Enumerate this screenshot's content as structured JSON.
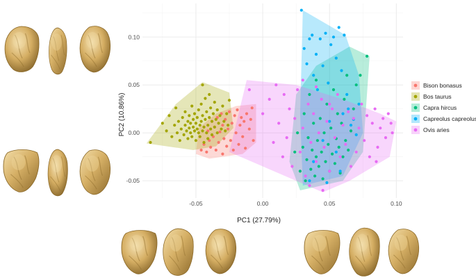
{
  "chart_data": {
    "type": "scatter",
    "title": "",
    "xlabel": "PC1 (27.79%)",
    "ylabel": "PC2 (10.86%)",
    "xlim": [
      -0.09,
      0.105
    ],
    "ylim": [
      -0.068,
      0.135
    ],
    "x_ticks": [
      {
        "value": -0.05,
        "label": "-0.05"
      },
      {
        "value": 0.0,
        "label": "0.00"
      },
      {
        "value": 0.05,
        "label": "0.05"
      },
      {
        "value": 0.1,
        "label": "0.10"
      }
    ],
    "y_ticks": [
      {
        "value": -0.05,
        "label": "-0.05"
      },
      {
        "value": 0.0,
        "label": "0.00"
      },
      {
        "value": 0.05,
        "label": "0.05"
      },
      {
        "value": 0.1,
        "label": "0.10"
      }
    ],
    "grid": true,
    "legend_position": "right",
    "convex_hulls": true,
    "series": [
      {
        "name": "Bison bonasus",
        "color": "#F8766D",
        "hull": [
          [
            -0.05,
            -0.022
          ],
          [
            -0.04,
            -0.027
          ],
          [
            -0.015,
            -0.022
          ],
          [
            -0.005,
            -0.01
          ],
          [
            -0.005,
            0.03
          ],
          [
            -0.02,
            0.028
          ],
          [
            -0.035,
            0.02
          ],
          [
            -0.048,
            0.005
          ]
        ],
        "points": [
          [
            -0.046,
            -0.018
          ],
          [
            -0.044,
            -0.012
          ],
          [
            -0.042,
            -0.02
          ],
          [
            -0.041,
            0.002
          ],
          [
            -0.04,
            -0.008
          ],
          [
            -0.039,
            -0.015
          ],
          [
            -0.038,
            0.012
          ],
          [
            -0.037,
            -0.004
          ],
          [
            -0.036,
            0.006
          ],
          [
            -0.035,
            -0.018
          ],
          [
            -0.034,
            0.016
          ],
          [
            -0.033,
            -0.01
          ],
          [
            -0.032,
            0.001
          ],
          [
            -0.031,
            0.02
          ],
          [
            -0.03,
            -0.022
          ],
          [
            -0.03,
            0.008
          ],
          [
            -0.029,
            -0.006
          ],
          [
            -0.028,
            0.014
          ],
          [
            -0.027,
            -0.014
          ],
          [
            -0.026,
            0.004
          ],
          [
            -0.025,
            0.022
          ],
          [
            -0.024,
            -0.008
          ],
          [
            -0.023,
            0.01
          ],
          [
            -0.022,
            -0.018
          ],
          [
            -0.021,
            0.018
          ],
          [
            -0.02,
            0.0
          ],
          [
            -0.019,
            0.024
          ],
          [
            -0.018,
            -0.012
          ],
          [
            -0.017,
            0.008
          ],
          [
            -0.016,
            0.016
          ],
          [
            -0.015,
            -0.004
          ],
          [
            -0.014,
            0.012
          ],
          [
            -0.013,
            -0.016
          ],
          [
            -0.012,
            0.02
          ],
          [
            -0.01,
            0.004
          ],
          [
            -0.008,
            0.026
          ],
          [
            -0.007,
            -0.008
          ],
          [
            -0.009,
            0.014
          ]
        ]
      },
      {
        "name": "Bos taurus",
        "color": "#A3A500",
        "hull": [
          [
            -0.087,
            -0.011
          ],
          [
            -0.052,
            -0.018
          ],
          [
            -0.035,
            -0.014
          ],
          [
            -0.022,
            0.005
          ],
          [
            -0.025,
            0.042
          ],
          [
            -0.045,
            0.053
          ],
          [
            -0.065,
            0.03
          ]
        ],
        "points": [
          [
            -0.084,
            -0.01
          ],
          [
            -0.075,
            0.01
          ],
          [
            -0.072,
            0.002
          ],
          [
            -0.07,
            0.018
          ],
          [
            -0.068,
            -0.004
          ],
          [
            -0.066,
            0.008
          ],
          [
            -0.065,
            0.026
          ],
          [
            -0.064,
            0.0
          ],
          [
            -0.063,
            0.012
          ],
          [
            -0.062,
            -0.008
          ],
          [
            -0.061,
            0.004
          ],
          [
            -0.06,
            0.016
          ],
          [
            -0.059,
            -0.002
          ],
          [
            -0.058,
            0.008
          ],
          [
            -0.058,
            0.022
          ],
          [
            -0.057,
            0.002
          ],
          [
            -0.056,
            0.012
          ],
          [
            -0.056,
            -0.006
          ],
          [
            -0.055,
            0.018
          ],
          [
            -0.055,
            0.005
          ],
          [
            -0.054,
            0.0
          ],
          [
            -0.054,
            0.01
          ],
          [
            -0.053,
            0.028
          ],
          [
            -0.053,
            -0.004
          ],
          [
            -0.052,
            0.006
          ],
          [
            -0.052,
            0.014
          ],
          [
            -0.051,
            0.002
          ],
          [
            -0.051,
            0.02
          ],
          [
            -0.05,
            -0.008
          ],
          [
            -0.05,
            0.01
          ],
          [
            -0.049,
            0.004
          ],
          [
            -0.049,
            0.016
          ],
          [
            -0.048,
            0.0
          ],
          [
            -0.048,
            0.024
          ],
          [
            -0.047,
            0.008
          ],
          [
            -0.047,
            -0.004
          ],
          [
            -0.046,
            0.012
          ],
          [
            -0.046,
            0.03
          ],
          [
            -0.045,
            0.002
          ],
          [
            -0.045,
            0.018
          ],
          [
            -0.044,
            0.006
          ],
          [
            -0.044,
            -0.01
          ],
          [
            -0.043,
            0.014
          ],
          [
            -0.043,
            0.036
          ],
          [
            -0.042,
            0.0
          ],
          [
            -0.042,
            0.022
          ],
          [
            -0.041,
            0.008
          ],
          [
            -0.041,
            -0.006
          ],
          [
            -0.04,
            0.016
          ],
          [
            -0.04,
            0.04
          ],
          [
            -0.039,
            0.004
          ],
          [
            -0.039,
            0.026
          ],
          [
            -0.038,
            0.012
          ],
          [
            -0.038,
            -0.002
          ],
          [
            -0.037,
            0.02
          ],
          [
            -0.036,
            0.006
          ],
          [
            -0.036,
            0.032
          ],
          [
            -0.035,
            0.014
          ],
          [
            -0.034,
            0.0
          ],
          [
            -0.034,
            0.024
          ],
          [
            -0.033,
            0.01
          ],
          [
            -0.032,
            0.018
          ],
          [
            -0.031,
            0.004
          ],
          [
            -0.03,
            0.028
          ],
          [
            -0.029,
            0.012
          ],
          [
            -0.028,
            0.002
          ],
          [
            -0.027,
            0.02
          ],
          [
            -0.026,
            0.008
          ],
          [
            -0.025,
            0.034
          ],
          [
            -0.045,
            0.05
          ]
        ]
      },
      {
        "name": "Capra hircus",
        "color": "#00BF7D",
        "hull": [
          [
            0.028,
            -0.06
          ],
          [
            0.06,
            -0.05
          ],
          [
            0.075,
            -0.02
          ],
          [
            0.08,
            0.08
          ],
          [
            0.065,
            0.09
          ],
          [
            0.04,
            0.07
          ],
          [
            0.025,
            0.04
          ],
          [
            0.02,
            -0.03
          ]
        ],
        "points": [
          [
            0.024,
            -0.02
          ],
          [
            0.026,
            0.0
          ],
          [
            0.028,
            -0.04
          ],
          [
            0.03,
            -0.015
          ],
          [
            0.031,
            0.02
          ],
          [
            0.032,
            -0.05
          ],
          [
            0.033,
            -0.028
          ],
          [
            0.034,
            -0.005
          ],
          [
            0.035,
            0.04
          ],
          [
            0.036,
            -0.038
          ],
          [
            0.037,
            -0.018
          ],
          [
            0.038,
            0.01
          ],
          [
            0.039,
            -0.045
          ],
          [
            0.04,
            -0.025
          ],
          [
            0.04,
            0.055
          ],
          [
            0.041,
            -0.008
          ],
          [
            0.042,
            -0.035
          ],
          [
            0.043,
            0.015
          ],
          [
            0.044,
            -0.02
          ],
          [
            0.045,
            -0.048
          ],
          [
            0.046,
            0.0
          ],
          [
            0.047,
            -0.03
          ],
          [
            0.048,
            0.03
          ],
          [
            0.049,
            -0.012
          ],
          [
            0.05,
            -0.04
          ],
          [
            0.051,
            0.005
          ],
          [
            0.052,
            -0.022
          ],
          [
            0.053,
            0.045
          ],
          [
            0.054,
            -0.032
          ],
          [
            0.055,
            -0.006
          ],
          [
            0.056,
            0.02
          ],
          [
            0.057,
            -0.015
          ],
          [
            0.058,
            -0.042
          ],
          [
            0.059,
            0.01
          ],
          [
            0.06,
            -0.025
          ],
          [
            0.061,
            0.035
          ],
          [
            0.062,
            -0.008
          ],
          [
            0.063,
            0.06
          ],
          [
            0.064,
            -0.018
          ],
          [
            0.066,
            0.002
          ],
          [
            0.068,
            0.025
          ],
          [
            0.07,
            0.05
          ],
          [
            0.073,
            0.06
          ],
          [
            0.078,
            0.08
          ]
        ]
      },
      {
        "name": "Capreolus capreolus",
        "color": "#00B0F6",
        "hull": [
          [
            0.03,
            -0.055
          ],
          [
            0.06,
            -0.045
          ],
          [
            0.075,
            0.0
          ],
          [
            0.072,
            0.06
          ],
          [
            0.062,
            0.102
          ],
          [
            0.03,
            0.128
          ],
          [
            0.028,
            0.02
          ]
        ],
        "points": [
          [
            0.029,
            0.128
          ],
          [
            0.031,
            0.088
          ],
          [
            0.033,
            0.072
          ],
          [
            0.035,
            0.098
          ],
          [
            0.037,
            0.102
          ],
          [
            0.038,
            0.06
          ],
          [
            0.04,
            0.082
          ],
          [
            0.041,
            0.045
          ],
          [
            0.043,
            0.098
          ],
          [
            0.045,
            0.07
          ],
          [
            0.047,
            0.104
          ],
          [
            0.049,
            0.052
          ],
          [
            0.051,
            0.092
          ],
          [
            0.053,
            0.1
          ],
          [
            0.055,
            0.078
          ],
          [
            0.057,
            0.11
          ],
          [
            0.059,
            0.065
          ],
          [
            0.061,
            0.102
          ],
          [
            0.063,
            0.04
          ],
          [
            0.06,
            0.02
          ],
          [
            0.064,
            0.025
          ],
          [
            0.066,
            0.008
          ],
          [
            0.068,
            0.014
          ],
          [
            0.07,
            -0.002
          ],
          [
            0.072,
            0.03
          ],
          [
            0.045,
            -0.008
          ],
          [
            0.05,
            0.012
          ],
          [
            0.055,
            -0.02
          ],
          [
            0.038,
            -0.03
          ],
          [
            0.048,
            -0.052
          ],
          [
            0.058,
            -0.04
          ],
          [
            0.035,
            -0.05
          ]
        ]
      },
      {
        "name": "Ovis aries",
        "color": "#E76BF3",
        "hull": [
          [
            -0.025,
            -0.02
          ],
          [
            0.025,
            -0.05
          ],
          [
            0.045,
            -0.062
          ],
          [
            0.065,
            -0.05
          ],
          [
            0.095,
            -0.025
          ],
          [
            0.1,
            0.012
          ],
          [
            0.088,
            0.02
          ],
          [
            0.06,
            0.035
          ],
          [
            0.025,
            0.05
          ],
          [
            -0.012,
            0.055
          ]
        ],
        "points": [
          [
            -0.01,
            0.045
          ],
          [
            0.0,
            0.02
          ],
          [
            0.005,
            0.035
          ],
          [
            0.008,
            -0.01
          ],
          [
            0.01,
            0.05
          ],
          [
            0.012,
            0.01
          ],
          [
            0.015,
            -0.025
          ],
          [
            0.016,
            0.04
          ],
          [
            0.018,
            -0.005
          ],
          [
            0.02,
            0.025
          ],
          [
            0.022,
            -0.035
          ],
          [
            0.024,
            0.015
          ],
          [
            0.026,
            0.045
          ],
          [
            0.028,
            -0.02
          ],
          [
            0.03,
            0.005
          ],
          [
            0.032,
            -0.045
          ],
          [
            0.034,
            0.03
          ],
          [
            0.036,
            -0.01
          ],
          [
            0.038,
            0.02
          ],
          [
            0.04,
            -0.03
          ],
          [
            0.042,
            0.0
          ],
          [
            0.044,
            0.035
          ],
          [
            0.046,
            -0.015
          ],
          [
            0.048,
            0.012
          ],
          [
            0.05,
            -0.04
          ],
          [
            0.052,
            0.025
          ],
          [
            0.054,
            -0.005
          ],
          [
            0.056,
            0.04
          ],
          [
            0.058,
            -0.025
          ],
          [
            0.06,
            0.008
          ],
          [
            0.062,
            -0.012
          ],
          [
            0.064,
            0.022
          ],
          [
            0.066,
            -0.035
          ],
          [
            0.068,
            0.015
          ],
          [
            0.07,
            -0.02
          ],
          [
            0.072,
            0.005
          ],
          [
            0.074,
            0.03
          ],
          [
            0.076,
            -0.008
          ],
          [
            0.078,
            0.018
          ],
          [
            0.08,
            -0.025
          ],
          [
            0.082,
            0.01
          ],
          [
            0.084,
            0.025
          ],
          [
            0.086,
            -0.015
          ],
          [
            0.088,
            0.005
          ],
          [
            0.09,
            0.015
          ],
          [
            0.092,
            -0.005
          ],
          [
            0.094,
            0.02
          ],
          [
            0.096,
            0.01
          ],
          [
            0.097,
            0.0
          ],
          [
            0.085,
            -0.03
          ],
          [
            0.04,
            0.048
          ],
          [
            0.05,
            0.03
          ],
          [
            0.035,
            -0.055
          ],
          [
            0.045,
            -0.06
          ],
          [
            0.03,
            0.055
          ]
        ]
      }
    ]
  },
  "colors": {
    "bone_fill": "#D8B46A",
    "bone_shadow": "#8C6A2A",
    "bone_highlight": "#F1D9A0",
    "panel_bg": "#FFFFFF",
    "grid": "#EBEBEB"
  }
}
